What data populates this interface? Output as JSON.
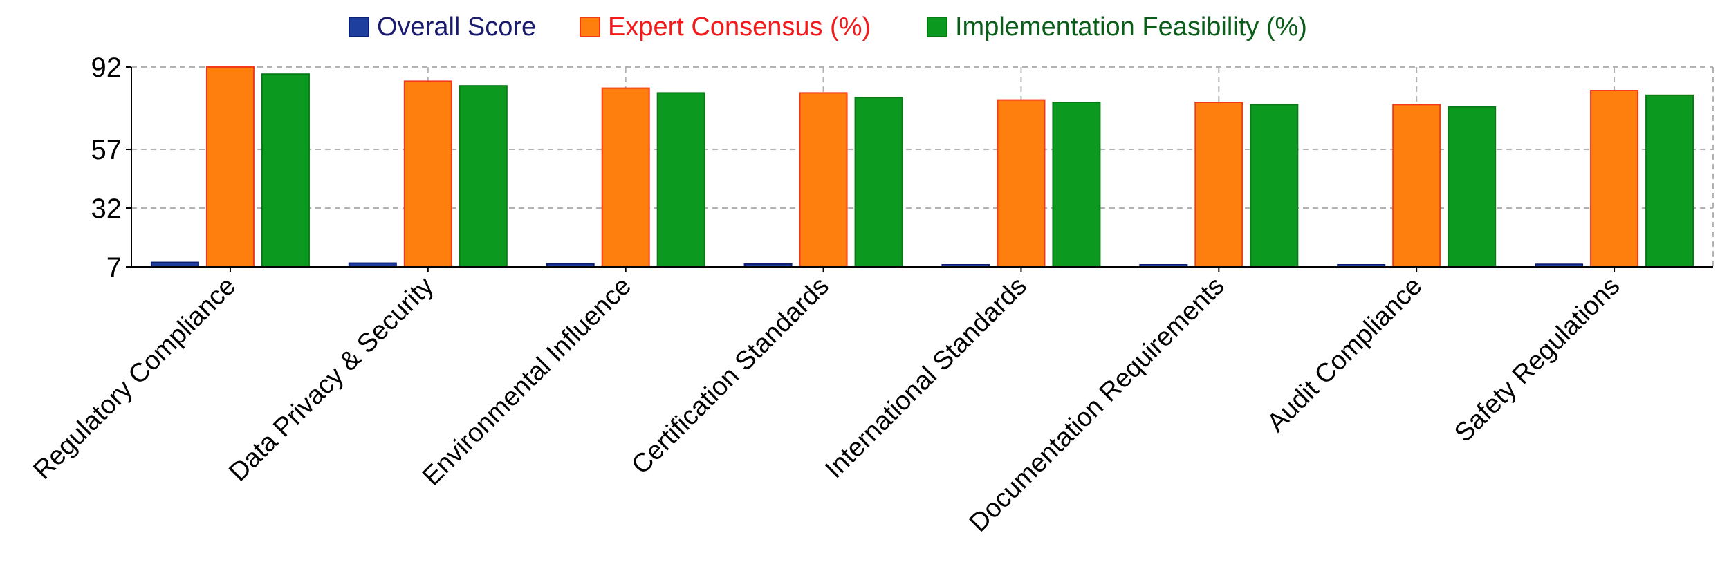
{
  "chart_data": {
    "type": "bar",
    "title": "",
    "xlabel": "",
    "ylabel": "",
    "ylim": [
      7,
      92
    ],
    "yticks": [
      7,
      32,
      57,
      92
    ],
    "grid": true,
    "legend_position": "top-center",
    "categories": [
      "Regulatory Compliance",
      "Data Privacy & Security",
      "Environmental Influence",
      "Certification Standards",
      "International Standards",
      "Documentation Requirements",
      "Audit Compliance",
      "Safety Regulations"
    ],
    "series": [
      {
        "name": "Overall Score",
        "color": "#1f3f9f",
        "stroke": "#0d1f73",
        "text_color": "#1a1a6e",
        "values": [
          8.9,
          8.6,
          8.3,
          8.2,
          7.8,
          7.6,
          7.5,
          8.1
        ]
      },
      {
        "name": "Expert Consensus (%)",
        "color": "#ff7f0e",
        "stroke": "#f23a1a",
        "text_color": "#f21a1a",
        "values": [
          92,
          86,
          83,
          81,
          78,
          77,
          76,
          82
        ]
      },
      {
        "name": "Implementation Feasibility (%)",
        "color": "#0b9a1f",
        "stroke": "#0a7a18",
        "text_color": "#0b5e1a",
        "values": [
          89,
          84,
          81,
          79,
          77,
          76,
          75,
          80
        ]
      }
    ]
  }
}
